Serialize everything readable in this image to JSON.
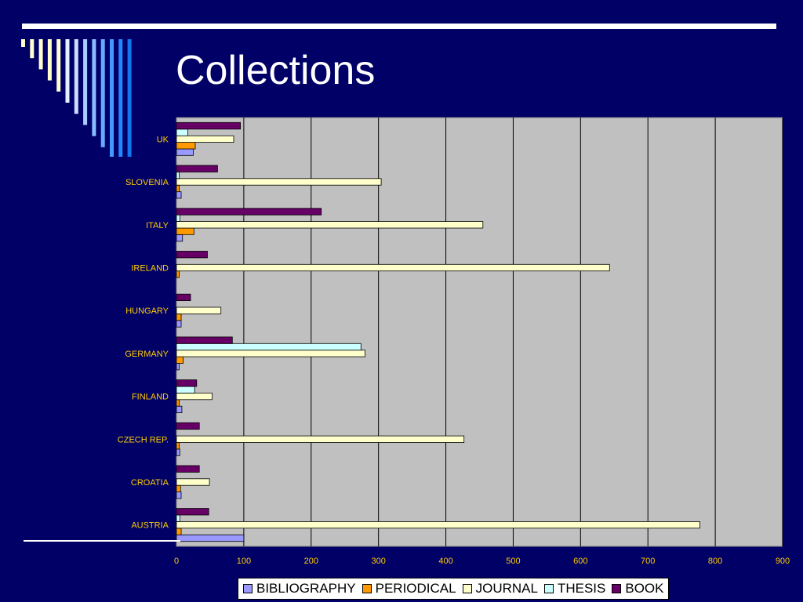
{
  "slide": {
    "title": "Collections",
    "background": "#000066"
  },
  "chart_data": {
    "type": "bar",
    "orientation": "horizontal",
    "categories": [
      "AUSTRIA",
      "CROATIA",
      "CZECH REP.",
      "FINLAND",
      "GERMANY",
      "HUNGARY",
      "IRELAND",
      "ITALY",
      "SLOVENIA",
      "UK"
    ],
    "series": [
      {
        "name": "BIBLIOGRAPHY",
        "color": "#9999ff",
        "values": [
          100,
          7,
          5,
          8,
          4,
          7,
          0,
          9,
          7,
          25
        ]
      },
      {
        "name": "PERIODICAL",
        "color": "#ff9900",
        "values": [
          7,
          6,
          4,
          4,
          10,
          7,
          4,
          26,
          4,
          28
        ]
      },
      {
        "name": "JOURNAL",
        "color": "#ffffcc",
        "values": [
          777,
          49,
          427,
          53,
          280,
          66,
          643,
          455,
          304,
          85
        ]
      },
      {
        "name": "THESIS",
        "color": "#ccffff",
        "values": [
          5,
          0,
          0,
          27,
          274,
          0,
          0,
          5,
          4,
          17
        ]
      },
      {
        "name": "BOOK",
        "color": "#660066",
        "values": [
          48,
          34,
          34,
          30,
          83,
          21,
          46,
          215,
          61,
          95
        ]
      }
    ],
    "xlim": [
      0,
      900
    ],
    "xticks": [
      "0",
      "100",
      "200",
      "300",
      "400",
      "500",
      "600",
      "700",
      "800",
      "900"
    ],
    "grid": "vertical",
    "legend": "bottom",
    "plot_background": "#c0c0c0",
    "category_label_color": "#ffcc00",
    "tick_label_color": "#ffcc00"
  }
}
